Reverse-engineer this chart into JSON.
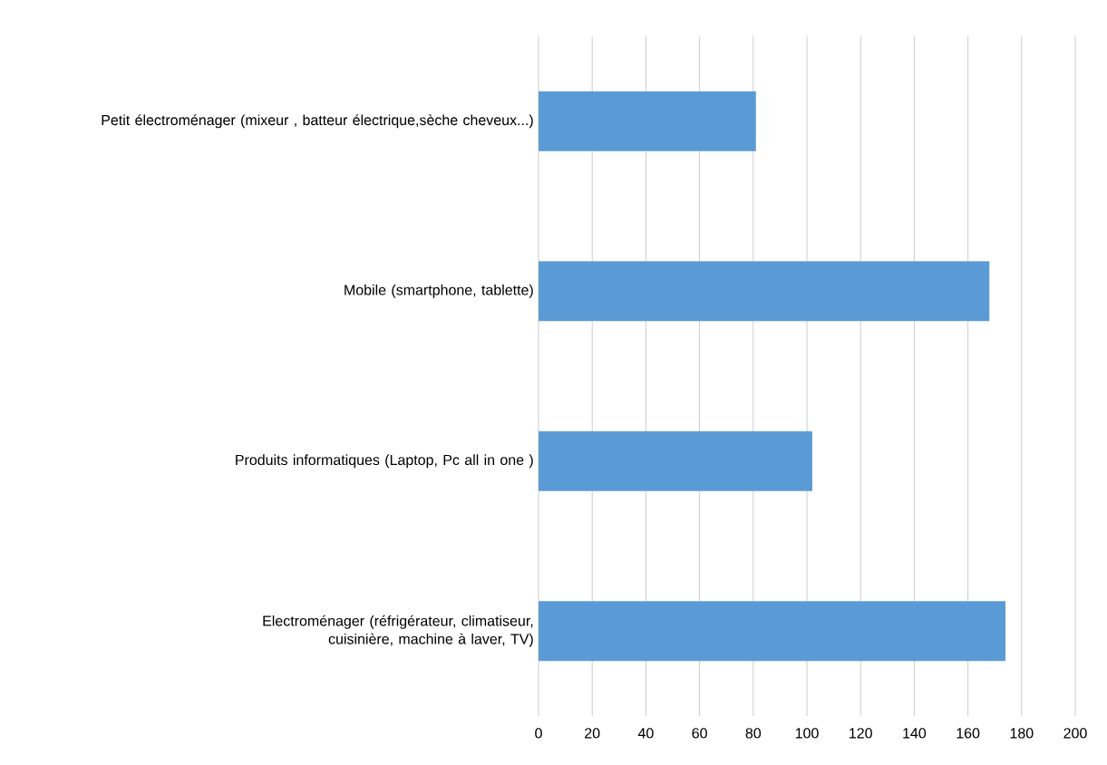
{
  "chart_data": {
    "type": "bar",
    "orientation": "horizontal",
    "categories": [
      "Petit électroménager (mixeur , batteur électrique,sèche cheveux...)",
      "Mobile (smartphone, tablette)",
      "Produits informatiques (Laptop, Pc all in one )",
      "Electroménager (réfrigérateur, climatiseur, cuisinière, machine à laver, TV)"
    ],
    "values": [
      81,
      168,
      102,
      174
    ],
    "color": "#5b9bd5",
    "xlim": [
      0,
      200
    ],
    "xticks": [
      0,
      20,
      40,
      60,
      80,
      100,
      120,
      140,
      160,
      180,
      200
    ],
    "grid": "x"
  }
}
